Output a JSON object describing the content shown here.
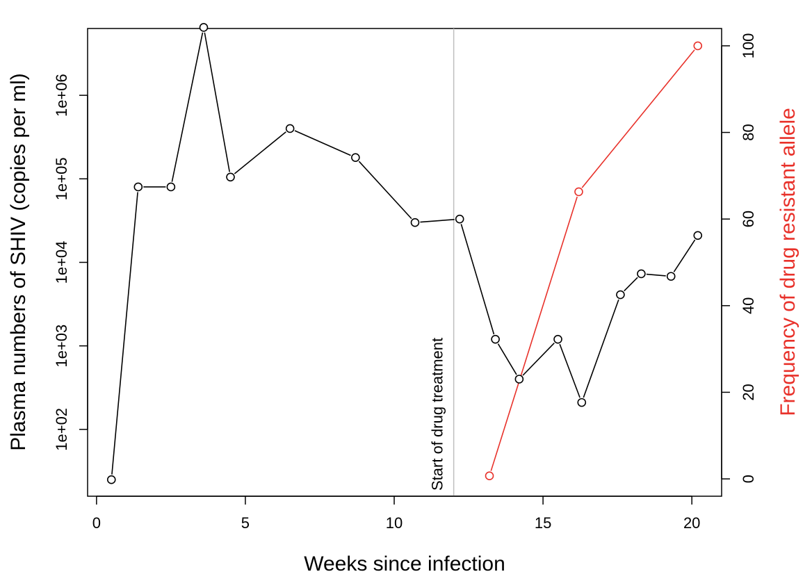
{
  "chart_data": {
    "type": "line",
    "xlabel": "Weeks since infection",
    "ylabel": "Plasma numbers of SHIV (copies per ml)",
    "ylabel_right": "Frequency of drug resistant allele",
    "x_ticks": [
      "0",
      "5",
      "10",
      "15",
      "20"
    ],
    "y_ticks_left": [
      "1e+02",
      "1e+03",
      "1e+04",
      "1e+05",
      "1e+06"
    ],
    "y_ticks_right": [
      "0",
      "20",
      "40",
      "60",
      "80",
      "100"
    ],
    "xlim": [
      -0.3,
      21.0
    ],
    "ylim_left_log10": [
      1.2,
      6.8
    ],
    "ylim_right": [
      -4,
      104
    ],
    "left_axis_scale": "log",
    "grid": false,
    "colors": {
      "left_series": "#000000",
      "right_series": "#e8312a",
      "treatment_line": "#bebebe"
    },
    "annotation": {
      "text": "Start of drug treatment",
      "x": 12
    },
    "series": [
      {
        "axis": "left",
        "x": [
          0.5,
          1.4,
          2.5,
          3.6,
          4.5,
          6.5,
          8.7,
          10.7,
          12.2,
          13.4,
          14.2,
          15.5,
          16.3,
          17.6,
          18.3,
          19.3,
          20.2
        ],
        "y": [
          25,
          80000,
          80000,
          6500000,
          105000,
          400000,
          180000,
          30000,
          33000,
          1200,
          400,
          1200,
          210,
          4100,
          7300,
          6800,
          21000
        ]
      },
      {
        "axis": "right",
        "x": [
          13.2,
          16.2,
          20.2
        ],
        "y": [
          0.7,
          66.3,
          100
        ]
      }
    ]
  }
}
